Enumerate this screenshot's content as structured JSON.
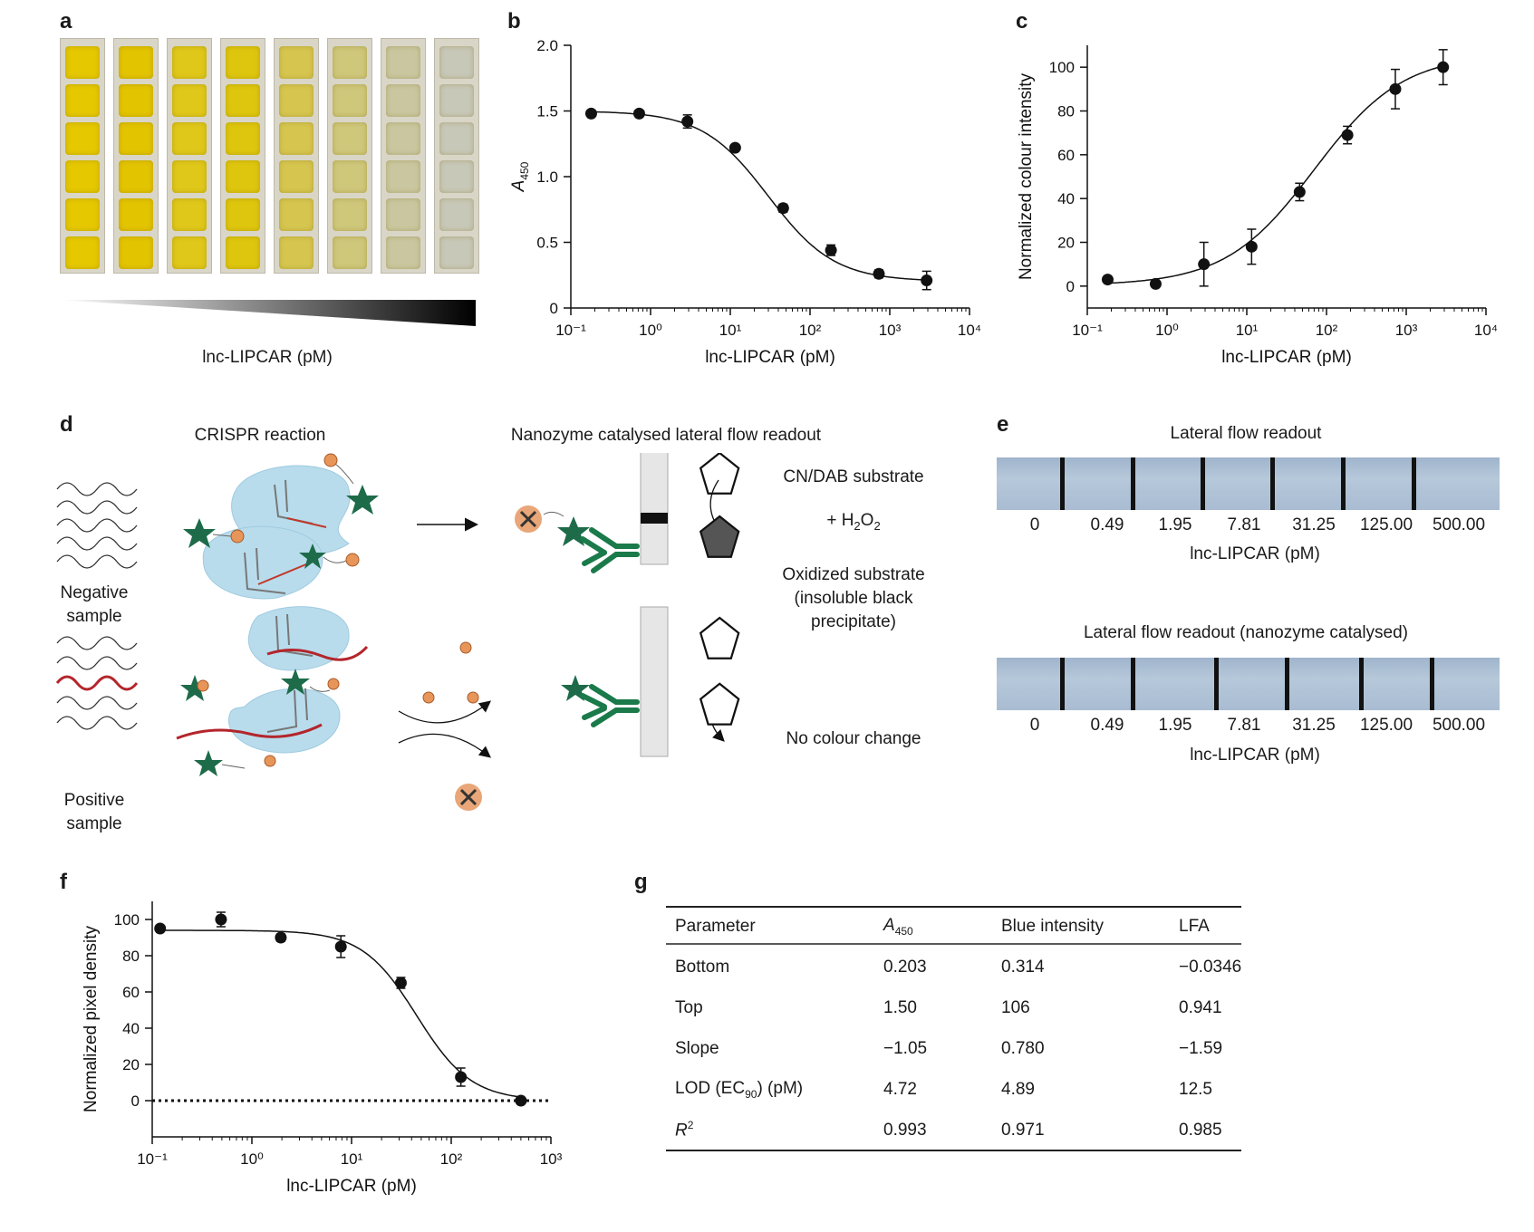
{
  "panel_labels": {
    "a": "a",
    "b": "b",
    "c": "c",
    "d": "d",
    "e": "e",
    "f": "f",
    "g": "g"
  },
  "panel_a": {
    "xlabel": "lnc-LIPCAR (pM)",
    "strip_count": 8
  },
  "panel_d": {
    "crispr_title": "CRISPR reaction",
    "lfa_title": "Nanozyme catalysed lateral flow readout",
    "negative_label_1": "Negative",
    "negative_label_2": "sample",
    "positive_label_1": "Positive",
    "positive_label_2": "sample",
    "substrate": "CN/DAB substrate",
    "h2o2_prefix": "+ H",
    "h2o2_sub1": "2",
    "h2o2_mid": "O",
    "h2o2_sub2": "2",
    "oxidized_1": "Oxidized substrate",
    "oxidized_2": "(insoluble black",
    "oxidized_3": "precipitate)",
    "no_change": "No colour change"
  },
  "panel_e": {
    "title_top": "Lateral flow readout",
    "title_bottom": "Lateral flow readout (nanozyme catalysed)",
    "concentrations": [
      "0",
      "0.49",
      "1.95",
      "7.81",
      "31.25",
      "125.00",
      "500.00"
    ],
    "xlabel": "lnc-LIPCAR (pM)"
  },
  "panel_g": {
    "headers": [
      "Parameter",
      "A",
      "Blue intensity",
      "LFA"
    ],
    "header_a_sub": "450",
    "rows": [
      [
        "Bottom",
        "0.203",
        "0.314",
        "−0.0346"
      ],
      [
        "Top",
        "1.50",
        "106",
        "0.941"
      ],
      [
        "Slope",
        "−1.05",
        "0.780",
        "−1.59"
      ],
      [
        "LOD (EC",
        "4.72",
        "4.89",
        "12.5"
      ],
      [
        "R",
        "0.993",
        "0.971",
        "0.985"
      ]
    ],
    "lod_sub": "90",
    "lod_suffix": ") (pM)",
    "r2_sup": "2"
  },
  "chart_data": [
    {
      "id": "b",
      "type": "scatter",
      "x_scale": "log",
      "xlabel": "lnc-LIPCAR (pM)",
      "ylabel": "A",
      "ylabel_sub": "450",
      "xlim": [
        0.1,
        10000
      ],
      "ylim": [
        0,
        2.0
      ],
      "xticks": [
        "10⁻¹",
        "10⁰",
        "10¹",
        "10²",
        "10³",
        "10⁴"
      ],
      "yticks": [
        "0",
        "0.5",
        "1.0",
        "1.5",
        "2.0"
      ],
      "x": [
        0.18,
        0.72,
        2.9,
        11.5,
        46,
        183,
        730,
        2900
      ],
      "y": [
        1.48,
        1.48,
        1.42,
        1.22,
        0.76,
        0.44,
        0.26,
        0.21
      ],
      "err": [
        0.02,
        0.02,
        0.05,
        0.02,
        0.03,
        0.04,
        0.03,
        0.07
      ],
      "fit": {
        "bottom": 0.203,
        "top": 1.5,
        "ec50": 30,
        "hill": 1.05,
        "direction": "down"
      }
    },
    {
      "id": "c",
      "type": "scatter",
      "x_scale": "log",
      "xlabel": "lnc-LIPCAR (pM)",
      "ylabel": "Normalized colour intensity",
      "xlim": [
        0.1,
        10000
      ],
      "ylim": [
        -10,
        110
      ],
      "xticks": [
        "10⁻¹",
        "10⁰",
        "10¹",
        "10²",
        "10³",
        "10⁴"
      ],
      "yticks": [
        "0",
        "20",
        "40",
        "60",
        "80",
        "100"
      ],
      "ytick_values": [
        0,
        20,
        40,
        60,
        80,
        100
      ],
      "x": [
        0.18,
        0.72,
        2.9,
        11.5,
        46,
        183,
        730,
        2900
      ],
      "y": [
        3,
        1,
        10,
        18,
        43,
        69,
        90,
        100
      ],
      "err": [
        1,
        1,
        10,
        8,
        4,
        4,
        9,
        8
      ],
      "fit": {
        "bottom": 0.314,
        "top": 106,
        "ec50": 70,
        "hill": 0.78,
        "direction": "up"
      }
    },
    {
      "id": "f",
      "type": "scatter",
      "x_scale": "log",
      "xlabel": "lnc-LIPCAR (pM)",
      "ylabel": "Normalized pixel density",
      "xlim": [
        0.1,
        1000
      ],
      "ylim": [
        -20,
        110
      ],
      "xticks": [
        "10⁻¹",
        "10⁰",
        "10¹",
        "10²",
        "10³"
      ],
      "yticks": [
        "0",
        "20",
        "40",
        "60",
        "80",
        "100"
      ],
      "ytick_values": [
        0,
        20,
        40,
        60,
        80,
        100
      ],
      "x": [
        0.12,
        0.49,
        1.95,
        7.81,
        31.25,
        125,
        500
      ],
      "y": [
        95,
        100,
        90,
        85,
        65,
        13,
        0
      ],
      "err": [
        1,
        4,
        2,
        6,
        3,
        5,
        1
      ],
      "fit": {
        "bottom": -0.0346,
        "top": 94,
        "ec50": 45,
        "hill": 1.59,
        "direction": "down"
      },
      "baseline": 0
    }
  ]
}
